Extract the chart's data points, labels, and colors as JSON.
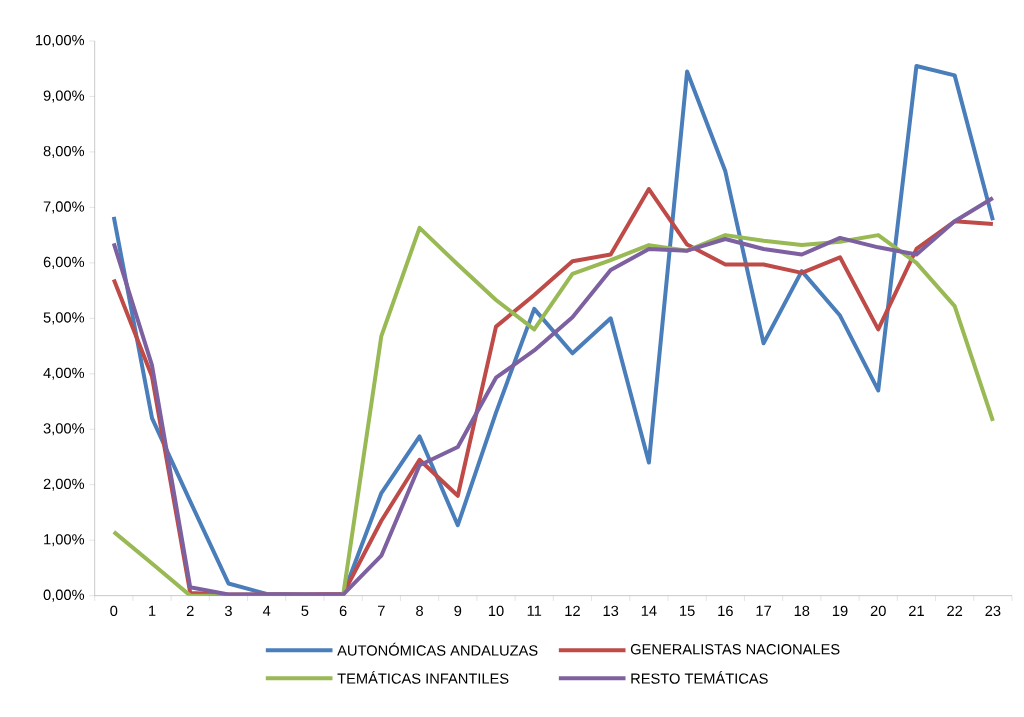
{
  "chart_data": {
    "type": "line",
    "categories": [
      "0",
      "1",
      "2",
      "3",
      "4",
      "5",
      "6",
      "7",
      "8",
      "9",
      "10",
      "11",
      "12",
      "13",
      "14",
      "15",
      "16",
      "17",
      "18",
      "19",
      "20",
      "21",
      "22",
      "23"
    ],
    "series": [
      {
        "name": "AUTONÓMICAS ANDALUZAS",
        "color": "#4a7ebb",
        "values": [
          6.83,
          3.2,
          1.7,
          0.22,
          0.03,
          0.02,
          0.02,
          1.85,
          2.87,
          1.27,
          3.3,
          5.17,
          4.37,
          5.0,
          2.4,
          9.45,
          7.65,
          4.55,
          5.85,
          5.05,
          3.7,
          9.55,
          9.38,
          6.77
        ]
      },
      {
        "name": "GENERALISTAS NACIONALES",
        "color": "#be4b48",
        "values": [
          5.7,
          3.95,
          0.05,
          0.02,
          0.02,
          0.02,
          0.03,
          1.35,
          2.45,
          1.8,
          4.85,
          5.42,
          6.03,
          6.15,
          7.33,
          6.33,
          5.97,
          5.97,
          5.82,
          6.1,
          4.8,
          6.25,
          6.75,
          6.7
        ]
      },
      {
        "name": "TEMÁTICAS INFANTILES",
        "color": "#98b954",
        "values": [
          1.15,
          0.58,
          0,
          0,
          0,
          0,
          0,
          4.68,
          6.63,
          5.97,
          5.33,
          4.8,
          5.8,
          6.05,
          6.32,
          6.22,
          6.5,
          6.4,
          6.32,
          6.38,
          6.5,
          6.0,
          5.22,
          3.15
        ]
      },
      {
        "name": "RESTO TEMÁTICAS",
        "color": "#7d60a0",
        "values": [
          6.35,
          4.15,
          0.15,
          0.02,
          0.02,
          0.02,
          0.02,
          0.72,
          2.35,
          2.68,
          3.93,
          4.42,
          5.02,
          5.87,
          6.25,
          6.22,
          6.43,
          6.25,
          6.15,
          6.45,
          6.28,
          6.15,
          6.75,
          7.17
        ]
      }
    ],
    "ylim": [
      0,
      10
    ],
    "yticks": [
      {
        "value": 0,
        "label": "0,00%"
      },
      {
        "value": 1,
        "label": "1,00%"
      },
      {
        "value": 2,
        "label": "2,00%"
      },
      {
        "value": 3,
        "label": "3,00%"
      },
      {
        "value": 4,
        "label": "4,00%"
      },
      {
        "value": 5,
        "label": "5,00%"
      },
      {
        "value": 6,
        "label": "6,00%"
      },
      {
        "value": 7,
        "label": "7,00%"
      },
      {
        "value": 8,
        "label": "8,00%"
      },
      {
        "value": 9,
        "label": "9,00%"
      },
      {
        "value": 10,
        "label": "10,00%"
      }
    ],
    "grid": false,
    "legend": "bottom",
    "marker": "none",
    "line_style": "solid"
  }
}
